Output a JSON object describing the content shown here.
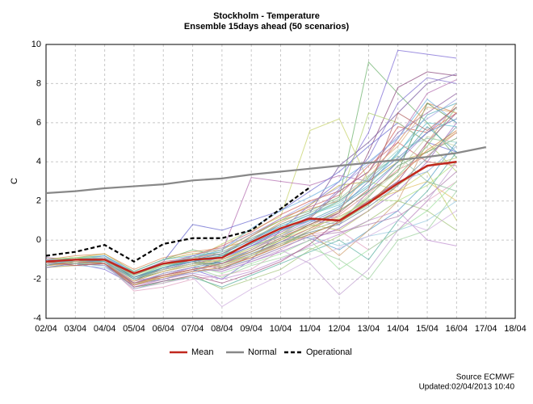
{
  "chart_data": {
    "type": "line",
    "title": "Stockholm - Temperature",
    "subtitle": "Ensemble 15days ahead (50 scenarios)",
    "y_label": "C",
    "source": "Source ECMWF",
    "updated": "Updated:02/04/2013 10:40",
    "categories": [
      "02/04",
      "03/04",
      "04/04",
      "05/04",
      "06/04",
      "07/04",
      "08/04",
      "09/04",
      "10/04",
      "11/04",
      "12/04",
      "13/04",
      "14/04",
      "15/04",
      "16/04",
      "17/04",
      "18/04"
    ],
    "ylim": [
      -4,
      10
    ],
    "yticks": [
      -4,
      -2,
      0,
      2,
      4,
      6,
      8,
      10
    ],
    "grid": true,
    "series": [
      {
        "name": "Mean",
        "color": "#c0281e",
        "values": [
          -1.1,
          -1.0,
          -1.0,
          -1.7,
          -1.2,
          -1.0,
          -0.9,
          -0.1,
          0.6,
          1.1,
          1.0,
          1.9,
          2.9,
          3.8,
          4.0,
          null,
          null
        ]
      },
      {
        "name": "Normal",
        "color": "#888888",
        "values": [
          2.4,
          2.5,
          2.65,
          2.75,
          2.85,
          3.05,
          3.15,
          3.35,
          3.5,
          3.65,
          3.8,
          3.95,
          4.1,
          4.25,
          4.45,
          4.75,
          null
        ]
      },
      {
        "name": "Operational",
        "color": "#000000",
        "dashed": true,
        "values": [
          -0.8,
          -0.6,
          -0.25,
          -1.1,
          -0.2,
          0.1,
          0.1,
          0.5,
          1.6,
          2.7,
          null,
          null,
          null,
          null,
          null,
          null,
          null
        ]
      }
    ],
    "ensemble": [
      {
        "color": "#9a7fd1",
        "values": [
          -1.2,
          -1.0,
          -0.9,
          -2.0,
          -1.5,
          -0.8,
          -1.2,
          -0.5,
          0.3,
          1.0,
          0.8,
          2.5,
          4.0,
          5.5,
          6.8
        ]
      },
      {
        "color": "#7d6bd6",
        "values": [
          -1.0,
          -1.2,
          -1.5,
          -2.3,
          -1.8,
          -1.5,
          -2.0,
          -1.0,
          0.5,
          1.8,
          3.0,
          5.5,
          9.7,
          9.5,
          9.3
        ]
      },
      {
        "color": "#6fb36f",
        "values": [
          -1.3,
          -1.1,
          -1.0,
          -1.6,
          -1.0,
          -0.5,
          -0.8,
          0.2,
          1.0,
          1.5,
          2.2,
          9.1,
          7.5,
          6.0,
          4.2
        ]
      },
      {
        "color": "#c7d36b",
        "values": [
          -1.1,
          -0.9,
          -0.8,
          -1.9,
          -1.3,
          -1.0,
          -0.2,
          0.5,
          1.2,
          5.6,
          6.2,
          3.0,
          2.5,
          3.5,
          1.0
        ]
      },
      {
        "color": "#8c4a7d",
        "values": [
          -0.9,
          -1.0,
          -1.2,
          -2.1,
          -1.4,
          -1.1,
          -1.5,
          -0.8,
          -0.1,
          0.6,
          1.4,
          4.5,
          7.8,
          8.6,
          8.4
        ]
      },
      {
        "color": "#5aa0c8",
        "values": [
          -1.4,
          -1.3,
          -1.1,
          -2.2,
          -2.0,
          -1.6,
          -1.0,
          -0.3,
          0.2,
          0.1,
          -0.5,
          0.5,
          1.5,
          3.0,
          5.0
        ]
      },
      {
        "color": "#d98f5a",
        "values": [
          -1.0,
          -0.8,
          -0.7,
          -1.5,
          -0.9,
          -0.6,
          -0.4,
          0.0,
          0.9,
          1.6,
          2.0,
          3.2,
          5.0,
          7.0,
          6.5
        ]
      },
      {
        "color": "#a3c47a",
        "values": [
          -1.2,
          -1.1,
          -1.3,
          -2.4,
          -2.2,
          -1.8,
          -2.5,
          -2.0,
          -1.5,
          -0.5,
          0.2,
          1.0,
          2.0,
          1.5,
          0.5
        ]
      },
      {
        "color": "#b46fb0",
        "values": [
          -1.1,
          -1.2,
          -1.0,
          -1.8,
          -1.2,
          -0.9,
          -0.6,
          3.2,
          3.0,
          2.8,
          3.3,
          3.0,
          5.2,
          7.5,
          8.2
        ]
      },
      {
        "color": "#4f8f4f",
        "values": [
          -1.3,
          -1.0,
          -0.9,
          -2.0,
          -1.6,
          -1.3,
          -1.1,
          -0.6,
          0.0,
          0.8,
          1.5,
          2.5,
          3.5,
          7.0,
          6.0
        ]
      },
      {
        "color": "#e0a0c0",
        "values": [
          -1.0,
          -1.1,
          -1.2,
          -2.6,
          -2.4,
          -2.0,
          -1.8,
          -1.5,
          -0.5,
          0.3,
          0.5,
          -0.5,
          0.5,
          2.0,
          3.0
        ]
      },
      {
        "color": "#6a6ad0",
        "values": [
          -1.2,
          -1.0,
          -0.8,
          -1.7,
          -1.1,
          0.8,
          0.5,
          1.0,
          1.5,
          2.5,
          3.5,
          4.8,
          6.0,
          5.0,
          4.5
        ]
      },
      {
        "color": "#98c9e0",
        "values": [
          -1.1,
          -1.3,
          -1.4,
          -2.2,
          -1.9,
          -1.7,
          -1.4,
          -1.0,
          -0.4,
          0.2,
          -0.3,
          0.2,
          0.5,
          1.0,
          2.0
        ]
      },
      {
        "color": "#c4b04a",
        "values": [
          -1.0,
          -0.9,
          -0.7,
          -1.6,
          -1.0,
          -0.7,
          -0.5,
          0.3,
          1.0,
          1.8,
          2.8,
          3.0,
          4.0,
          4.5,
          5.5
        ]
      },
      {
        "color": "#9fd3a0",
        "values": [
          -1.4,
          -1.2,
          -1.1,
          -2.3,
          -1.7,
          -1.4,
          -1.9,
          -1.3,
          -0.9,
          -0.4,
          -1.0,
          -2.0,
          0.0,
          0.5,
          2.5
        ]
      },
      {
        "color": "#7a5aa0",
        "values": [
          -1.2,
          -1.1,
          -1.0,
          -1.9,
          -1.4,
          -1.0,
          -0.7,
          0.0,
          0.8,
          1.4,
          3.8,
          5.0,
          6.5,
          8.0,
          8.5
        ]
      },
      {
        "color": "#d0605a",
        "values": [
          -1.1,
          -1.0,
          -0.9,
          -1.8,
          -1.2,
          -0.8,
          -0.3,
          0.4,
          1.3,
          2.0,
          2.5,
          3.5,
          5.8,
          5.5,
          6.5
        ]
      },
      {
        "color": "#5ab0a0",
        "values": [
          -1.3,
          -1.2,
          -1.3,
          -2.5,
          -2.1,
          -1.9,
          -2.4,
          -1.8,
          -1.2,
          -0.6,
          0.0,
          -1.0,
          1.0,
          2.5,
          4.5
        ]
      },
      {
        "color": "#b0d070",
        "values": [
          -1.0,
          -0.9,
          -1.1,
          -2.0,
          -1.5,
          -1.2,
          -1.0,
          -0.4,
          0.3,
          1.2,
          2.0,
          6.5,
          6.0,
          5.0,
          3.5
        ]
      },
      {
        "color": "#a070c0",
        "values": [
          -1.2,
          -1.3,
          -1.2,
          -2.1,
          -1.8,
          -1.4,
          -1.6,
          -1.1,
          -0.6,
          0.0,
          0.6,
          1.5,
          2.5,
          4.0,
          6.0
        ]
      },
      {
        "color": "#8fb0e0",
        "values": [
          -1.1,
          -1.0,
          -0.9,
          -1.7,
          -1.3,
          -1.1,
          -0.8,
          -0.2,
          0.5,
          1.0,
          1.2,
          2.0,
          3.0,
          3.5,
          4.8
        ]
      },
      {
        "color": "#d0a070",
        "values": [
          -1.3,
          -1.1,
          -1.0,
          -2.2,
          -1.9,
          -1.5,
          -1.3,
          -0.7,
          -0.2,
          0.4,
          -0.8,
          0.5,
          2.0,
          5.0,
          7.0
        ]
      },
      {
        "color": "#70a070",
        "values": [
          -1.0,
          -1.2,
          -1.1,
          -2.0,
          -1.4,
          -1.0,
          -1.4,
          -0.9,
          -0.3,
          0.5,
          1.0,
          2.2,
          3.8,
          4.5,
          5.2
        ]
      },
      {
        "color": "#c090d0",
        "values": [
          -1.2,
          -1.0,
          -1.2,
          -2.4,
          -2.0,
          -1.7,
          -2.0,
          -1.6,
          -1.0,
          -0.3,
          0.3,
          1.0,
          1.5,
          0.0,
          -0.3
        ]
      },
      {
        "color": "#60c0d0",
        "values": [
          -1.1,
          -0.9,
          -0.8,
          -1.6,
          -1.0,
          -0.8,
          -0.6,
          0.1,
          0.7,
          1.3,
          1.8,
          2.8,
          4.5,
          6.0,
          5.8
        ]
      },
      {
        "color": "#e0c060",
        "values": [
          -1.4,
          -1.3,
          -1.2,
          -2.3,
          -1.8,
          -1.5,
          -1.2,
          -0.8,
          0.0,
          0.6,
          1.2,
          2.0,
          2.5,
          3.0,
          2.0
        ]
      },
      {
        "color": "#9060a0",
        "values": [
          -1.0,
          -1.1,
          -1.0,
          -1.9,
          -1.5,
          -1.2,
          -0.9,
          -0.3,
          0.4,
          1.1,
          2.5,
          3.5,
          5.5,
          6.5,
          7.5
        ]
      },
      {
        "color": "#a0e0a0",
        "values": [
          -1.2,
          -1.1,
          -1.1,
          -2.1,
          -1.6,
          -1.3,
          -1.7,
          -1.2,
          -0.7,
          0.0,
          -1.5,
          -0.5,
          0.5,
          1.5,
          3.0
        ]
      },
      {
        "color": "#6080c0",
        "values": [
          -1.1,
          -1.2,
          -1.3,
          -2.2,
          -1.7,
          -1.4,
          -1.1,
          -0.5,
          0.2,
          0.9,
          1.6,
          3.0,
          4.2,
          5.5,
          6.2
        ]
      },
      {
        "color": "#d07070",
        "values": [
          -1.3,
          -1.0,
          -0.9,
          -1.8,
          -1.1,
          -0.9,
          -0.7,
          0.2,
          1.1,
          1.7,
          2.3,
          3.8,
          5.0,
          4.0,
          3.8
        ]
      },
      {
        "color": "#80c080",
        "values": [
          -1.0,
          -0.9,
          -1.0,
          -2.0,
          -1.4,
          -1.1,
          -1.3,
          -0.8,
          -0.2,
          0.3,
          0.9,
          1.8,
          3.3,
          4.8,
          6.8
        ]
      },
      {
        "color": "#b080b0",
        "values": [
          -1.2,
          -1.2,
          -1.1,
          -2.3,
          -2.0,
          -1.6,
          -1.5,
          -1.0,
          -0.4,
          0.2,
          0.4,
          0.8,
          1.2,
          2.2,
          3.5
        ]
      },
      {
        "color": "#70b0e0",
        "values": [
          -1.1,
          -1.0,
          -0.8,
          -1.7,
          -1.2,
          -0.9,
          -0.5,
          0.6,
          1.5,
          2.2,
          3.0,
          4.0,
          5.2,
          7.2,
          6.0
        ]
      },
      {
        "color": "#c0c070",
        "values": [
          -1.3,
          -1.2,
          -1.2,
          -2.1,
          -1.6,
          -1.2,
          -1.0,
          -0.4,
          0.3,
          0.8,
          0.5,
          1.5,
          2.8,
          3.8,
          4.2
        ]
      },
      {
        "color": "#a05080",
        "values": [
          -1.0,
          -1.1,
          -1.2,
          -2.4,
          -2.1,
          -1.8,
          -2.2,
          -1.7,
          -1.1,
          -0.2,
          1.0,
          2.0,
          3.0,
          5.0,
          6.5
        ]
      },
      {
        "color": "#90d0c0",
        "values": [
          -1.2,
          -1.0,
          -0.9,
          -1.9,
          -1.3,
          -1.0,
          -0.8,
          -0.1,
          0.6,
          1.3,
          1.9,
          3.2,
          4.6,
          5.2,
          5.0
        ]
      },
      {
        "color": "#e09090",
        "values": [
          -1.1,
          -1.3,
          -1.2,
          -2.2,
          -1.8,
          -1.5,
          -1.3,
          -0.9,
          -0.2,
          0.5,
          1.3,
          2.4,
          3.6,
          4.3,
          5.5
        ]
      },
      {
        "color": "#8070d0",
        "values": [
          -1.4,
          -1.2,
          -1.0,
          -2.0,
          -1.5,
          -1.1,
          -0.9,
          -0.3,
          0.5,
          1.2,
          2.6,
          4.2,
          7.0,
          8.3,
          8.0
        ]
      },
      {
        "color": "#b0e080",
        "values": [
          -1.0,
          -0.9,
          -0.9,
          -1.8,
          -1.3,
          -1.0,
          -1.1,
          -0.6,
          0.1,
          0.7,
          1.1,
          2.1,
          2.0,
          2.8,
          4.0
        ]
      },
      {
        "color": "#d0b0e0",
        "values": [
          -1.2,
          -1.1,
          -1.3,
          -2.5,
          -2.2,
          -1.9,
          -3.4,
          -2.5,
          -1.8,
          -1.0,
          -0.4,
          0.2,
          1.0,
          0.5,
          1.5
        ]
      },
      {
        "color": "#50a0b0",
        "values": [
          -1.1,
          -1.0,
          -1.0,
          -1.9,
          -1.4,
          -1.1,
          -0.8,
          -0.2,
          0.5,
          1.0,
          1.7,
          2.7,
          4.0,
          5.8,
          4.5
        ]
      },
      {
        "color": "#e0b080",
        "values": [
          -1.3,
          -1.2,
          -1.1,
          -2.1,
          -1.6,
          -1.3,
          -1.0,
          -0.5,
          0.2,
          0.7,
          1.5,
          3.5,
          4.8,
          6.8,
          6.5
        ]
      },
      {
        "color": "#7090a0",
        "values": [
          -1.0,
          -1.1,
          -1.1,
          -2.0,
          -1.5,
          -1.2,
          -1.2,
          -0.7,
          -0.1,
          0.4,
          0.8,
          1.7,
          2.8,
          4.2,
          5.8
        ]
      },
      {
        "color": "#c0a0d0",
        "values": [
          -1.2,
          -1.0,
          -1.0,
          -2.2,
          -1.7,
          -1.4,
          -1.6,
          -1.1,
          -0.5,
          -1.2,
          -2.8,
          -1.5,
          0.5,
          2.0,
          4.0
        ]
      },
      {
        "color": "#90c0a0",
        "values": [
          -1.1,
          -1.2,
          -1.1,
          -1.8,
          -1.2,
          -0.9,
          -0.6,
          0.1,
          0.8,
          1.4,
          2.1,
          3.3,
          4.3,
          3.0,
          2.5
        ]
      },
      {
        "color": "#d08040",
        "values": [
          -1.3,
          -1.1,
          -1.2,
          -2.3,
          -1.9,
          -1.6,
          -1.4,
          -0.9,
          -0.3,
          0.3,
          0.9,
          1.9,
          3.2,
          4.6,
          5.6
        ]
      },
      {
        "color": "#a0a0e0",
        "values": [
          -1.0,
          -1.0,
          -0.9,
          -1.7,
          -1.2,
          -0.8,
          -0.4,
          0.3,
          1.1,
          1.9,
          2.7,
          3.9,
          5.3,
          6.2,
          7.2
        ]
      },
      {
        "color": "#c0d0a0",
        "values": [
          -1.2,
          -1.1,
          -1.0,
          -2.0,
          -1.5,
          -1.2,
          -1.3,
          -0.8,
          -0.2,
          0.5,
          1.0,
          2.3,
          3.5,
          5.3,
          4.8
        ]
      },
      {
        "color": "#b06060",
        "values": [
          -1.1,
          -1.3,
          -1.2,
          -2.2,
          -1.8,
          -1.5,
          -1.2,
          -0.6,
          0.1,
          0.8,
          1.4,
          2.6,
          6.5,
          5.6,
          6.8
        ]
      },
      {
        "color": "#60b0c0",
        "values": [
          -1.3,
          -1.0,
          -1.1,
          -2.0,
          -1.4,
          -1.0,
          -0.7,
          0.0,
          0.7,
          1.3,
          2.0,
          3.1,
          4.4,
          6.4,
          7.0
        ]
      }
    ]
  }
}
